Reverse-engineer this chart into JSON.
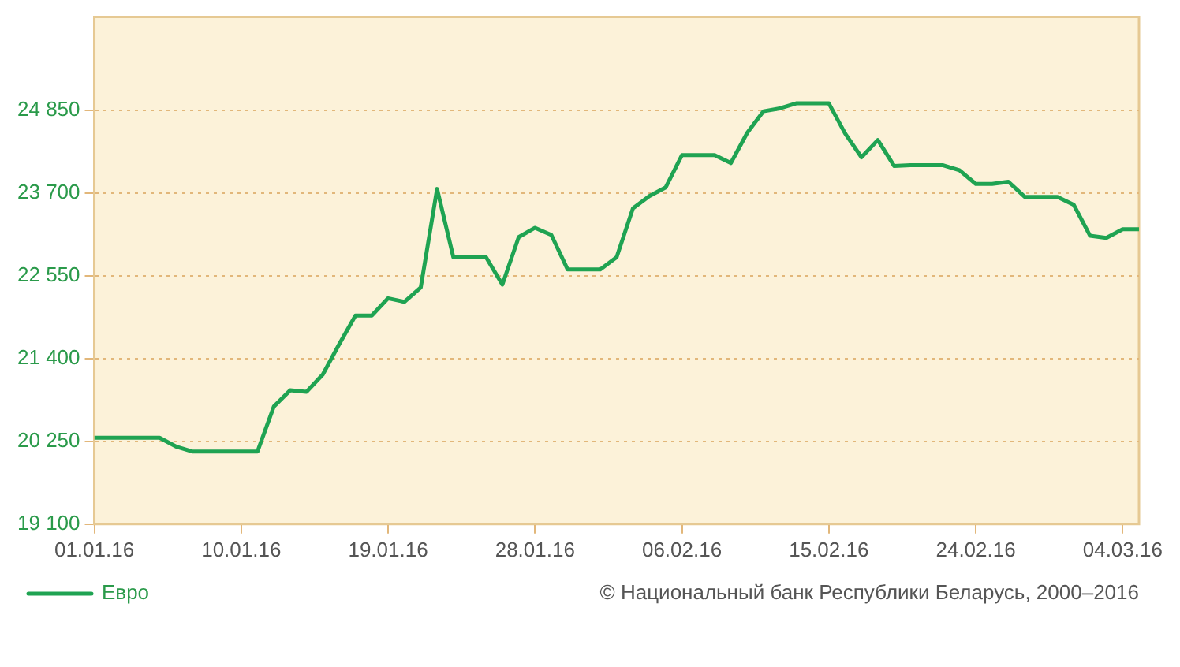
{
  "chart_data": {
    "type": "line",
    "x": [
      "2016-01-01",
      "2016-01-02",
      "2016-01-03",
      "2016-01-04",
      "2016-01-05",
      "2016-01-06",
      "2016-01-07",
      "2016-01-08",
      "2016-01-09",
      "2016-01-10",
      "2016-01-11",
      "2016-01-12",
      "2016-01-13",
      "2016-01-14",
      "2016-01-15",
      "2016-01-16",
      "2016-01-17",
      "2016-01-18",
      "2016-01-19",
      "2016-01-20",
      "2016-01-21",
      "2016-01-22",
      "2016-01-23",
      "2016-01-24",
      "2016-01-25",
      "2016-01-26",
      "2016-01-27",
      "2016-01-28",
      "2016-01-29",
      "2016-01-30",
      "2016-01-31",
      "2016-02-01",
      "2016-02-02",
      "2016-02-03",
      "2016-02-04",
      "2016-02-05",
      "2016-02-06",
      "2016-02-07",
      "2016-02-08",
      "2016-02-09",
      "2016-02-10",
      "2016-02-11",
      "2016-02-12",
      "2016-02-13",
      "2016-02-14",
      "2016-02-15",
      "2016-02-16",
      "2016-02-17",
      "2016-02-18",
      "2016-02-19",
      "2016-02-20",
      "2016-02-21",
      "2016-02-22",
      "2016-02-23",
      "2016-02-24",
      "2016-02-25",
      "2016-02-26",
      "2016-02-27",
      "2016-02-28",
      "2016-02-29",
      "2016-03-01",
      "2016-03-02",
      "2016-03-03",
      "2016-03-04",
      "2016-03-05"
    ],
    "series": [
      {
        "name": "Евро",
        "color": "#1fa352",
        "values": [
          20300,
          20300,
          20300,
          20300,
          20300,
          20180,
          20110,
          20110,
          20110,
          20110,
          20110,
          20735,
          20960,
          20940,
          21180,
          21600,
          22000,
          22000,
          22240,
          22190,
          22390,
          23760,
          22810,
          22810,
          22810,
          22430,
          23090,
          23220,
          23120,
          22640,
          22640,
          22640,
          22810,
          23490,
          23660,
          23780,
          24230,
          24230,
          24230,
          24120,
          24540,
          24840,
          24880,
          24950,
          24950,
          24950,
          24530,
          24200,
          24440,
          24080,
          24090,
          24090,
          24090,
          24020,
          23830,
          23830,
          23860,
          23650,
          23650,
          23650,
          23540,
          23110,
          23080,
          23200,
          23200
        ]
      }
    ],
    "xlim": [
      "2016-01-01",
      "2016-03-05"
    ],
    "xticks": [
      {
        "value": "2016-01-01",
        "label": "01.01.16"
      },
      {
        "value": "2016-01-10",
        "label": "10.01.16"
      },
      {
        "value": "2016-01-19",
        "label": "19.01.16"
      },
      {
        "value": "2016-01-28",
        "label": "28.01.16"
      },
      {
        "value": "2016-02-06",
        "label": "06.02.16"
      },
      {
        "value": "2016-02-15",
        "label": "15.02.16"
      },
      {
        "value": "2016-02-24",
        "label": "24.02.16"
      },
      {
        "value": "2016-03-04",
        "label": "04.03.16"
      }
    ],
    "ylim": [
      19100,
      26150
    ],
    "yticks": [
      {
        "value": 19100,
        "label": "19 100"
      },
      {
        "value": 20250,
        "label": "20 250"
      },
      {
        "value": 21400,
        "label": "21 400"
      },
      {
        "value": 22550,
        "label": "22 550"
      },
      {
        "value": 23700,
        "label": "23 700"
      },
      {
        "value": 24850,
        "label": "24 850"
      }
    ],
    "grid": "y",
    "legend": "bottom left",
    "marker": "none",
    "line_style": "solid",
    "annotations": [
      "© Национальный банк Республики Беларусь, 2000–2016"
    ]
  }
}
